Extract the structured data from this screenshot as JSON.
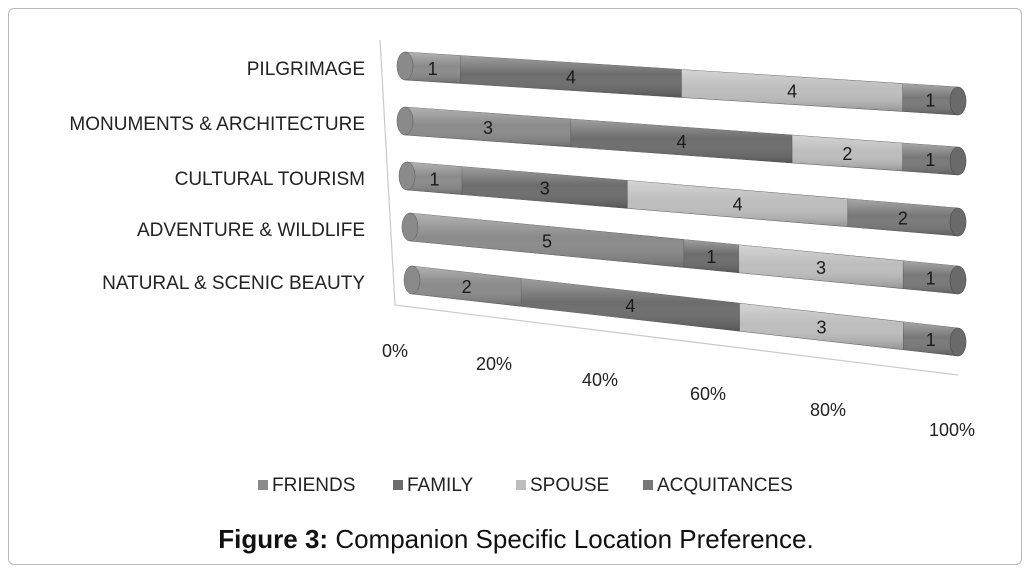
{
  "chart_data": {
    "type": "bar",
    "orientation": "horizontal",
    "stacked": "percent",
    "three_d": true,
    "categories": [
      "PILGRIMAGE",
      "MONUMENTS & ARCHITECTURE",
      "CULTURAL TOURISM",
      "ADVENTURE & WILDLIFE",
      "NATURAL & SCENIC BEAUTY"
    ],
    "series": [
      {
        "name": "FRIENDS",
        "color": "#8a8a8a",
        "values": [
          1,
          3,
          1,
          5,
          2
        ]
      },
      {
        "name": "FAMILY",
        "color": "#6c6c6c",
        "values": [
          4,
          4,
          3,
          1,
          4
        ]
      },
      {
        "name": "SPOUSE",
        "color": "#bdbdbd",
        "values": [
          4,
          2,
          4,
          3,
          3
        ]
      },
      {
        "name": "ACQUITANCES",
        "color": "#787878",
        "values": [
          1,
          1,
          2,
          1,
          1
        ]
      }
    ],
    "x_ticks": [
      "0%",
      "20%",
      "40%",
      "60%",
      "80%",
      "100%"
    ],
    "legend": "bottom"
  },
  "caption": {
    "label": "Figure 3:",
    "text": " Companion Specific Location Preference."
  }
}
